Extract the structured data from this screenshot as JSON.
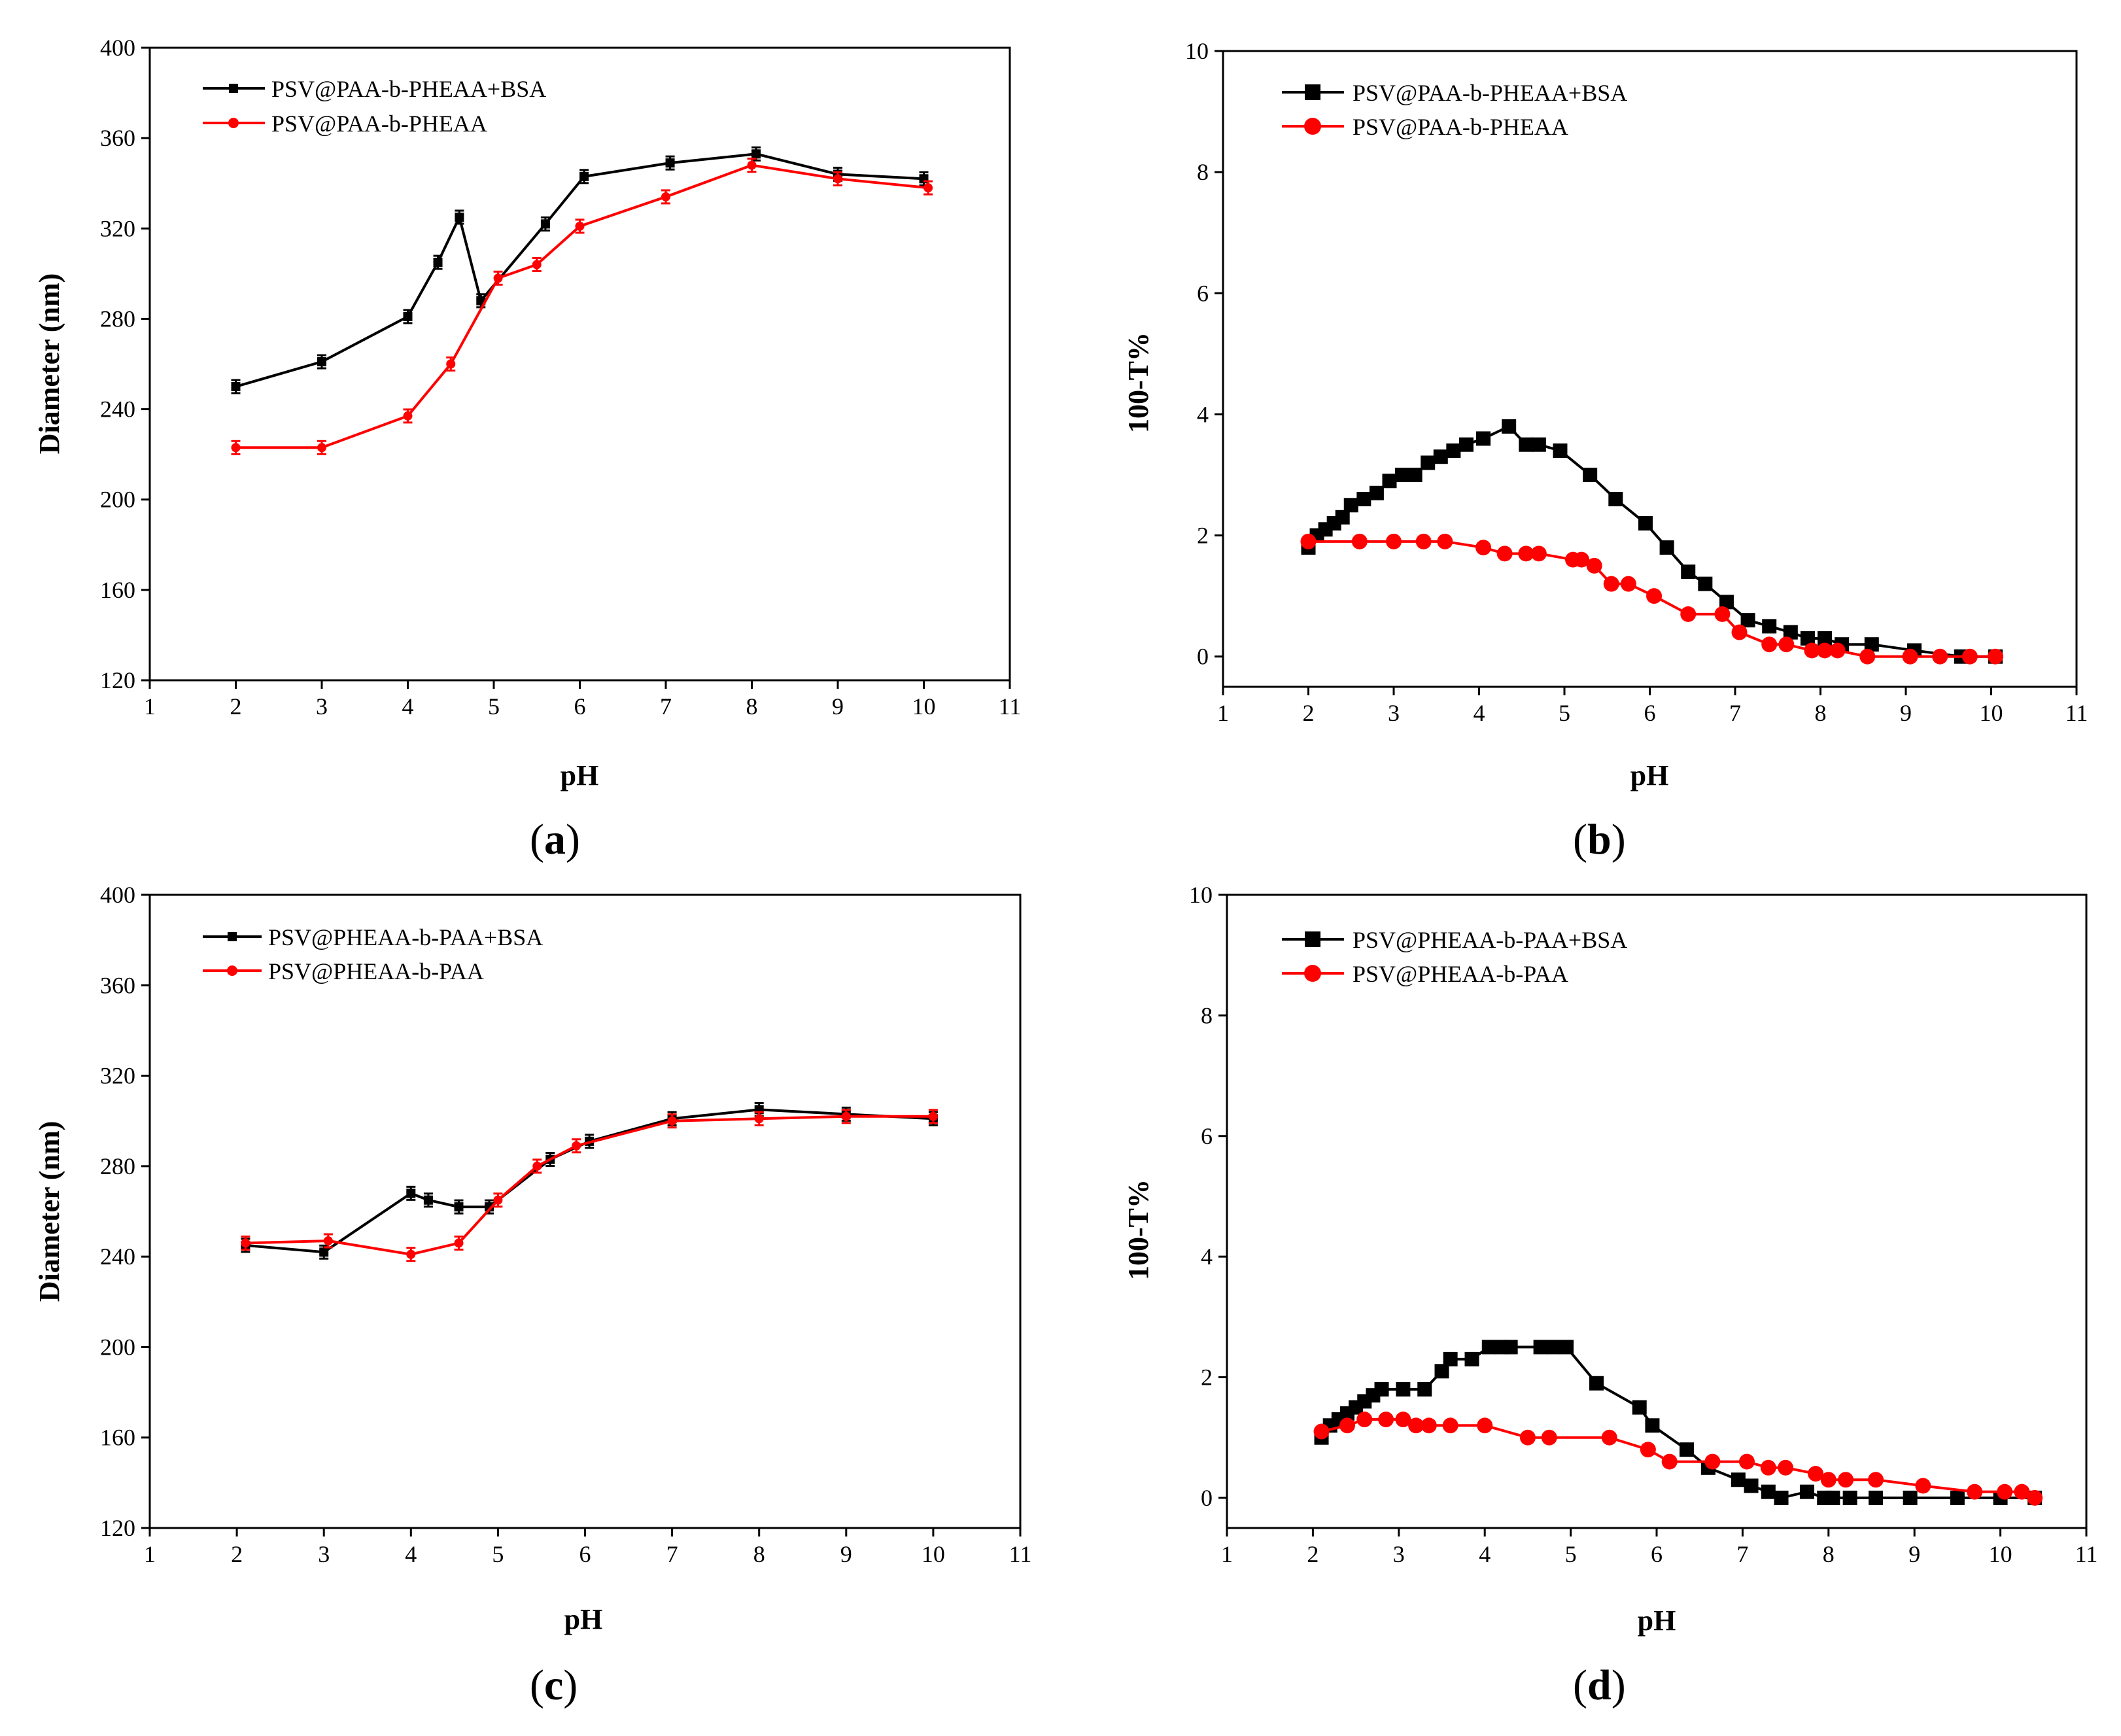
{
  "chart_data": [
    {
      "id": "a",
      "type": "line",
      "panel_label": "a",
      "xlabel": "pH",
      "ylabel": "Diameter (nm)",
      "xlim": [
        1,
        11
      ],
      "ylim": [
        120,
        400
      ],
      "xticks": [
        1,
        2,
        3,
        4,
        5,
        6,
        7,
        8,
        9,
        10,
        11
      ],
      "yticks": [
        120,
        160,
        200,
        240,
        280,
        320,
        360,
        400
      ],
      "legend_position": "top-left",
      "series": [
        {
          "name": "PSV@PAA-b-PHEAA+BSA",
          "color": "#000000",
          "marker": "small-square",
          "error_bars": true,
          "x": [
            2.0,
            3.0,
            4.0,
            4.35,
            4.6,
            4.85,
            5.6,
            6.05,
            7.05,
            8.05,
            9.0,
            10.0
          ],
          "y": [
            250,
            261,
            281,
            305,
            325,
            288,
            322,
            343,
            349,
            353,
            344,
            342
          ]
        },
        {
          "name": "PSV@PAA-b-PHEAA",
          "color": "#ff0000",
          "marker": "small-circle",
          "error_bars": true,
          "x": [
            2.0,
            3.0,
            4.0,
            4.5,
            5.05,
            5.5,
            6.0,
            7.0,
            8.0,
            9.0,
            10.05
          ],
          "y": [
            223,
            223,
            237,
            260,
            298,
            304,
            321,
            334,
            348,
            342,
            338
          ]
        }
      ]
    },
    {
      "id": "b",
      "type": "line",
      "panel_label": "b",
      "xlabel": "pH",
      "ylabel": "100-T%",
      "xlim": [
        1,
        11
      ],
      "ylim": [
        -0.5,
        10
      ],
      "xticks": [
        1,
        2,
        3,
        4,
        5,
        6,
        7,
        8,
        9,
        10,
        11
      ],
      "yticks": [
        0,
        2,
        4,
        6,
        8,
        10
      ],
      "legend_position": "top-left",
      "series": [
        {
          "name": "PSV@PAA-b-PHEAA+BSA",
          "color": "#000000",
          "marker": "square",
          "x": [
            2.0,
            2.1,
            2.2,
            2.3,
            2.4,
            2.5,
            2.65,
            2.8,
            2.95,
            3.1,
            3.25,
            3.4,
            3.55,
            3.7,
            3.85,
            4.05,
            4.35,
            4.55,
            4.7,
            4.95,
            5.3,
            5.6,
            5.95,
            6.2,
            6.45,
            6.65,
            6.9,
            7.15,
            7.4,
            7.65,
            7.85,
            8.05,
            8.25,
            8.6,
            9.1,
            9.65,
            10.05
          ],
          "y": [
            1.8,
            2.0,
            2.1,
            2.2,
            2.3,
            2.5,
            2.6,
            2.7,
            2.9,
            3.0,
            3.0,
            3.2,
            3.3,
            3.4,
            3.5,
            3.6,
            3.8,
            3.5,
            3.5,
            3.4,
            3.0,
            2.6,
            2.2,
            1.8,
            1.4,
            1.2,
            0.9,
            0.6,
            0.5,
            0.4,
            0.3,
            0.3,
            0.2,
            0.2,
            0.1,
            0.0,
            0.0
          ]
        },
        {
          "name": "PSV@PAA-b-PHEAA",
          "color": "#ff0000",
          "marker": "circle",
          "x": [
            2.0,
            2.6,
            3.0,
            3.35,
            3.6,
            4.05,
            4.3,
            4.55,
            4.7,
            5.1,
            5.2,
            5.35,
            5.55,
            5.75,
            6.05,
            6.45,
            6.85,
            7.05,
            7.4,
            7.6,
            7.9,
            8.05,
            8.2,
            8.55,
            9.05,
            9.4,
            9.75,
            10.05
          ],
          "y": [
            1.9,
            1.9,
            1.9,
            1.9,
            1.9,
            1.8,
            1.7,
            1.7,
            1.7,
            1.6,
            1.6,
            1.5,
            1.2,
            1.2,
            1.0,
            0.7,
            0.7,
            0.4,
            0.2,
            0.2,
            0.1,
            0.1,
            0.1,
            0.0,
            0.0,
            0.0,
            0.0,
            0.0
          ]
        }
      ]
    },
    {
      "id": "c",
      "type": "line",
      "panel_label": "c",
      "xlabel": "pH",
      "ylabel": "Diameter (nm)",
      "xlim": [
        1,
        11
      ],
      "ylim": [
        120,
        400
      ],
      "xticks": [
        1,
        2,
        3,
        4,
        5,
        6,
        7,
        8,
        9,
        10,
        11
      ],
      "yticks": [
        120,
        160,
        200,
        240,
        280,
        320,
        360,
        400
      ],
      "legend_position": "top-left",
      "series": [
        {
          "name": "PSV@PHEAA-b-PAA+BSA",
          "color": "#000000",
          "marker": "small-square",
          "error_bars": true,
          "x": [
            2.1,
            3.0,
            4.0,
            4.2,
            4.55,
            4.9,
            5.6,
            6.05,
            7.0,
            8.0,
            9.0,
            10.0
          ],
          "y": [
            245,
            242,
            268,
            265,
            262,
            262,
            283,
            291,
            301,
            305,
            303,
            301
          ]
        },
        {
          "name": "PSV@PHEAA-b-PAA",
          "color": "#ff0000",
          "marker": "small-circle",
          "error_bars": true,
          "x": [
            2.1,
            3.05,
            4.0,
            4.55,
            5.0,
            5.45,
            5.9,
            7.0,
            8.0,
            9.0,
            10.0
          ],
          "y": [
            246,
            247,
            241,
            246,
            265,
            280,
            289,
            300,
            301,
            302,
            302
          ]
        }
      ]
    },
    {
      "id": "d",
      "type": "line",
      "panel_label": "d",
      "xlabel": "pH",
      "ylabel": "100-T%",
      "xlim": [
        1,
        11
      ],
      "ylim": [
        -0.5,
        10
      ],
      "xticks": [
        1,
        2,
        3,
        4,
        5,
        6,
        7,
        8,
        9,
        10,
        11
      ],
      "yticks": [
        0,
        2,
        4,
        6,
        8,
        10
      ],
      "legend_position": "top-left",
      "series": [
        {
          "name": "PSV@PHEAA-b-PAA+BSA",
          "color": "#000000",
          "marker": "square",
          "x": [
            2.1,
            2.2,
            2.3,
            2.4,
            2.5,
            2.6,
            2.7,
            2.8,
            3.05,
            3.3,
            3.5,
            3.6,
            3.85,
            4.05,
            4.2,
            4.3,
            4.65,
            4.8,
            4.95,
            5.3,
            5.8,
            5.95,
            6.35,
            6.6,
            6.95,
            7.1,
            7.3,
            7.45,
            7.75,
            7.95,
            8.05,
            8.25,
            8.55,
            8.95,
            9.5,
            10.0,
            10.4
          ],
          "y": [
            1.0,
            1.2,
            1.3,
            1.4,
            1.5,
            1.6,
            1.7,
            1.8,
            1.8,
            1.8,
            2.1,
            2.3,
            2.3,
            2.5,
            2.5,
            2.5,
            2.5,
            2.5,
            2.5,
            1.9,
            1.5,
            1.2,
            0.8,
            0.5,
            0.3,
            0.2,
            0.1,
            0.0,
            0.1,
            0.0,
            0.0,
            0.0,
            0.0,
            0.0,
            0.0,
            0.0,
            0.0
          ]
        },
        {
          "name": "PSV@PHEAA-b-PAA",
          "color": "#ff0000",
          "marker": "circle",
          "x": [
            2.1,
            2.4,
            2.6,
            2.85,
            3.05,
            3.2,
            3.35,
            3.6,
            4.0,
            4.5,
            4.75,
            5.45,
            5.9,
            6.15,
            6.65,
            7.05,
            7.3,
            7.5,
            7.85,
            8.0,
            8.2,
            8.55,
            9.1,
            9.7,
            10.05,
            10.25,
            10.4
          ],
          "y": [
            1.1,
            1.2,
            1.3,
            1.3,
            1.3,
            1.2,
            1.2,
            1.2,
            1.2,
            1.0,
            1.0,
            1.0,
            0.8,
            0.6,
            0.6,
            0.6,
            0.5,
            0.5,
            0.4,
            0.3,
            0.3,
            0.3,
            0.2,
            0.1,
            0.1,
            0.1,
            0.0
          ]
        }
      ]
    }
  ]
}
